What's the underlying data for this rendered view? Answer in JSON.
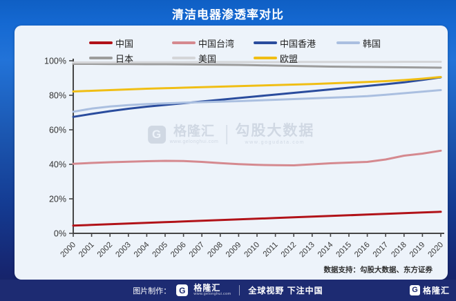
{
  "header": {
    "title": "清洁电器渗透率对比"
  },
  "chart_data": {
    "type": "line",
    "title": "清洁电器渗透率对比",
    "xlabel": "",
    "ylabel": "",
    "ylim": [
      0,
      100
    ],
    "grid": false,
    "legend_position": "top",
    "y_ticks": [
      "0%",
      "20%",
      "40%",
      "60%",
      "80%",
      "100%"
    ],
    "x": [
      "2000",
      "2001",
      "2002",
      "2003",
      "2004",
      "2005",
      "2006",
      "2007",
      "2008",
      "2009",
      "2010",
      "2011",
      "2012",
      "2013",
      "2014",
      "2015",
      "2016",
      "2017",
      "2018",
      "2019",
      "2020"
    ],
    "series": [
      {
        "name": "中国",
        "color": "#b11218",
        "values": [
          4.5,
          4.9,
          5.3,
          5.7,
          6.1,
          6.5,
          6.9,
          7.3,
          7.7,
          8.1,
          8.5,
          8.9,
          9.3,
          9.7,
          10.1,
          10.5,
          10.9,
          11.3,
          11.7,
          12.1,
          12.5
        ]
      },
      {
        "name": "中国台湾",
        "color": "#d5898f",
        "values": [
          40.3,
          40.8,
          41.2,
          41.5,
          41.8,
          42.0,
          41.9,
          41.4,
          40.7,
          40.1,
          39.7,
          39.5,
          39.4,
          40.0,
          40.6,
          41.0,
          41.4,
          42.8,
          45.0,
          46.2,
          47.9
        ]
      },
      {
        "name": "中国香港",
        "color": "#2a4c9d",
        "values": [
          67.5,
          69.2,
          70.8,
          72.2,
          73.4,
          74.4,
          75.4,
          76.4,
          77.4,
          78.4,
          79.4,
          80.4,
          81.4,
          82.4,
          83.4,
          84.4,
          85.4,
          86.4,
          87.5,
          88.9,
          90.4
        ]
      },
      {
        "name": "韩国",
        "color": "#aabfe0",
        "values": [
          70.5,
          72.3,
          73.5,
          74.3,
          74.9,
          75.3,
          75.7,
          76.0,
          76.3,
          76.6,
          77.0,
          77.4,
          77.8,
          78.2,
          78.6,
          79.0,
          79.5,
          80.3,
          81.2,
          82.1,
          83.0
        ]
      },
      {
        "name": "日本",
        "color": "#9c9c9c",
        "values": [
          98.2,
          98.2,
          98.1,
          98.1,
          98.0,
          98.0,
          97.9,
          97.8,
          97.7,
          97.6,
          97.4,
          97.2,
          97.0,
          96.8,
          96.6,
          96.5,
          96.4,
          96.3,
          96.2,
          96.1,
          96.0
        ]
      },
      {
        "name": "美国",
        "color": "#d4d5d8",
        "values": [
          99.0,
          99.0,
          99.0,
          99.1,
          99.1,
          99.1,
          99.1,
          99.2,
          99.2,
          99.2,
          99.2,
          99.2,
          99.3,
          99.3,
          99.3,
          99.3,
          99.3,
          99.3,
          99.4,
          99.4,
          99.4
        ]
      },
      {
        "name": "欧盟",
        "color": "#f0be14",
        "values": [
          82.2,
          82.6,
          83.0,
          83.4,
          83.8,
          84.1,
          84.4,
          84.7,
          85.0,
          85.3,
          85.6,
          85.9,
          86.2,
          86.5,
          86.9,
          87.3,
          87.7,
          88.2,
          88.8,
          89.6,
          90.6
        ]
      }
    ]
  },
  "watermark": {
    "logo_letter": "G",
    "brand": "格隆汇",
    "brand_url": "www.gelonghui.com",
    "product": "勾股大数据",
    "product_url": "www.gogudata.com"
  },
  "data_support": "数据支持：勾股大数据、东方证券",
  "footer": {
    "made_by": "图片制作：",
    "logo_letter": "G",
    "brand": "格隆汇",
    "brand_url": "www.gelonghui.com",
    "slogan": "全球视野 下注中国",
    "right_logo_letter": "G",
    "right_brand": "格隆汇"
  },
  "colors": {
    "header_blue": "#1569d2",
    "footer_navy": "#1d2b72",
    "card_bg": "#edf3fa",
    "axis": "#454545"
  }
}
